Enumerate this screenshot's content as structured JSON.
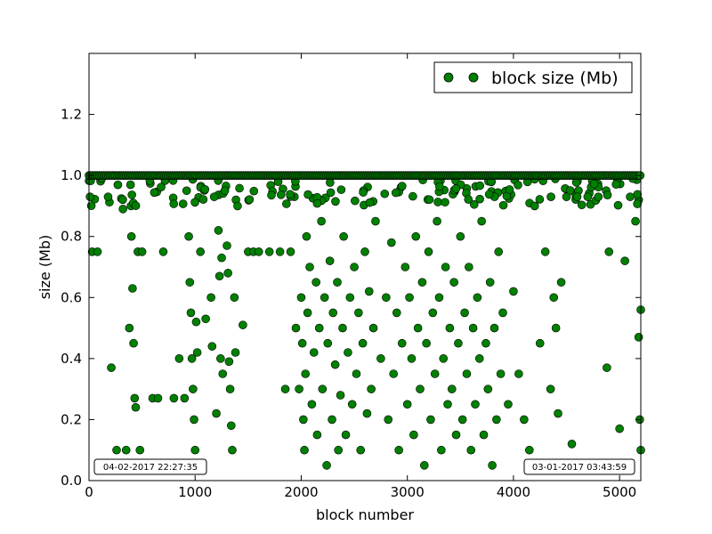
{
  "chart_data": {
    "type": "scatter",
    "xlabel": "block number",
    "ylabel": "size (Mb)",
    "xlim": [
      0,
      5200
    ],
    "ylim": [
      0,
      1.4
    ],
    "xticks": [
      "0",
      "1000",
      "2000",
      "3000",
      "4000",
      "5000"
    ],
    "yticks": [
      "0.0",
      "0.2",
      "0.4",
      "0.6",
      "0.8",
      "1.0",
      "1.2"
    ],
    "grid": false,
    "legend_position": "top-right",
    "series": [
      {
        "name": "block size (Mb)",
        "color": "#008000",
        "edge_color": "#000000",
        "marker": "circle",
        "points": [
          [
            10,
            0.93
          ],
          [
            30,
            0.75
          ],
          [
            80,
            0.75
          ],
          [
            120,
            0.99
          ],
          [
            180,
            0.93
          ],
          [
            210,
            0.37
          ],
          [
            260,
            0.1
          ],
          [
            320,
            0.89
          ],
          [
            350,
            0.1
          ],
          [
            380,
            0.5
          ],
          [
            400,
            0.8
          ],
          [
            410,
            0.63
          ],
          [
            420,
            0.45
          ],
          [
            430,
            0.27
          ],
          [
            440,
            0.24
          ],
          [
            460,
            0.75
          ],
          [
            480,
            0.1
          ],
          [
            500,
            0.75
          ],
          [
            600,
            0.27
          ],
          [
            650,
            0.27
          ],
          [
            700,
            0.75
          ],
          [
            800,
            0.27
          ],
          [
            850,
            0.4
          ],
          [
            900,
            0.27
          ],
          [
            920,
            0.95
          ],
          [
            940,
            0.8
          ],
          [
            950,
            0.65
          ],
          [
            960,
            0.55
          ],
          [
            970,
            0.4
          ],
          [
            980,
            0.3
          ],
          [
            990,
            0.2
          ],
          [
            1000,
            0.1
          ],
          [
            1010,
            0.52
          ],
          [
            1020,
            0.42
          ],
          [
            1050,
            0.75
          ],
          [
            1100,
            0.53
          ],
          [
            1150,
            0.6
          ],
          [
            1160,
            0.44
          ],
          [
            1180,
            0.93
          ],
          [
            1200,
            0.22
          ],
          [
            1220,
            0.82
          ],
          [
            1230,
            0.67
          ],
          [
            1240,
            0.4
          ],
          [
            1250,
            0.73
          ],
          [
            1260,
            0.35
          ],
          [
            1280,
            0.95
          ],
          [
            1300,
            0.77
          ],
          [
            1310,
            0.68
          ],
          [
            1320,
            0.39
          ],
          [
            1330,
            0.3
          ],
          [
            1340,
            0.18
          ],
          [
            1350,
            0.1
          ],
          [
            1370,
            0.6
          ],
          [
            1380,
            0.42
          ],
          [
            1400,
            0.9
          ],
          [
            1450,
            0.51
          ],
          [
            1500,
            0.75
          ],
          [
            1550,
            0.75
          ],
          [
            1600,
            0.75
          ],
          [
            1700,
            0.75
          ],
          [
            1800,
            0.75
          ],
          [
            1850,
            0.3
          ],
          [
            1900,
            0.75
          ],
          [
            1950,
            0.5
          ],
          [
            1980,
            0.3
          ],
          [
            2000,
            0.6
          ],
          [
            2010,
            0.45
          ],
          [
            2020,
            0.2
          ],
          [
            2030,
            0.1
          ],
          [
            2040,
            0.35
          ],
          [
            2050,
            0.8
          ],
          [
            2060,
            0.55
          ],
          [
            2080,
            0.7
          ],
          [
            2100,
            0.25
          ],
          [
            2120,
            0.42
          ],
          [
            2140,
            0.65
          ],
          [
            2150,
            0.15
          ],
          [
            2170,
            0.5
          ],
          [
            2190,
            0.85
          ],
          [
            2200,
            0.3
          ],
          [
            2220,
            0.6
          ],
          [
            2240,
            0.05
          ],
          [
            2250,
            0.45
          ],
          [
            2270,
            0.72
          ],
          [
            2290,
            0.2
          ],
          [
            2300,
            0.55
          ],
          [
            2320,
            0.38
          ],
          [
            2340,
            0.65
          ],
          [
            2350,
            0.1
          ],
          [
            2370,
            0.28
          ],
          [
            2390,
            0.5
          ],
          [
            2400,
            0.8
          ],
          [
            2420,
            0.15
          ],
          [
            2440,
            0.42
          ],
          [
            2460,
            0.6
          ],
          [
            2480,
            0.25
          ],
          [
            2500,
            0.7
          ],
          [
            2520,
            0.35
          ],
          [
            2540,
            0.55
          ],
          [
            2560,
            0.1
          ],
          [
            2580,
            0.45
          ],
          [
            2600,
            0.75
          ],
          [
            2620,
            0.22
          ],
          [
            2640,
            0.62
          ],
          [
            2660,
            0.3
          ],
          [
            2680,
            0.5
          ],
          [
            2700,
            0.85
          ],
          [
            2750,
            0.4
          ],
          [
            2800,
            0.6
          ],
          [
            2820,
            0.2
          ],
          [
            2850,
            0.78
          ],
          [
            2870,
            0.35
          ],
          [
            2900,
            0.55
          ],
          [
            2920,
            0.1
          ],
          [
            2950,
            0.45
          ],
          [
            2980,
            0.7
          ],
          [
            3000,
            0.25
          ],
          [
            3020,
            0.6
          ],
          [
            3040,
            0.4
          ],
          [
            3060,
            0.15
          ],
          [
            3080,
            0.8
          ],
          [
            3100,
            0.5
          ],
          [
            3120,
            0.3
          ],
          [
            3140,
            0.65
          ],
          [
            3160,
            0.05
          ],
          [
            3180,
            0.45
          ],
          [
            3200,
            0.75
          ],
          [
            3220,
            0.2
          ],
          [
            3240,
            0.55
          ],
          [
            3260,
            0.35
          ],
          [
            3280,
            0.85
          ],
          [
            3300,
            0.6
          ],
          [
            3320,
            0.1
          ],
          [
            3340,
            0.4
          ],
          [
            3360,
            0.7
          ],
          [
            3380,
            0.25
          ],
          [
            3400,
            0.5
          ],
          [
            3420,
            0.3
          ],
          [
            3440,
            0.65
          ],
          [
            3460,
            0.15
          ],
          [
            3480,
            0.45
          ],
          [
            3500,
            0.8
          ],
          [
            3520,
            0.2
          ],
          [
            3540,
            0.55
          ],
          [
            3560,
            0.35
          ],
          [
            3580,
            0.7
          ],
          [
            3600,
            0.1
          ],
          [
            3620,
            0.5
          ],
          [
            3640,
            0.25
          ],
          [
            3660,
            0.6
          ],
          [
            3680,
            0.4
          ],
          [
            3700,
            0.85
          ],
          [
            3720,
            0.15
          ],
          [
            3740,
            0.45
          ],
          [
            3760,
            0.3
          ],
          [
            3780,
            0.65
          ],
          [
            3800,
            0.05
          ],
          [
            3820,
            0.5
          ],
          [
            3840,
            0.2
          ],
          [
            3860,
            0.75
          ],
          [
            3880,
            0.35
          ],
          [
            3900,
            0.55
          ],
          [
            3950,
            0.25
          ],
          [
            4000,
            0.62
          ],
          [
            4050,
            0.35
          ],
          [
            4100,
            0.2
          ],
          [
            4150,
            0.1
          ],
          [
            4200,
            0.9
          ],
          [
            4250,
            0.45
          ],
          [
            4300,
            0.75
          ],
          [
            4350,
            0.3
          ],
          [
            4380,
            0.6
          ],
          [
            4400,
            0.5
          ],
          [
            4420,
            0.22
          ],
          [
            4450,
            0.65
          ],
          [
            4500,
            0.93
          ],
          [
            4550,
            0.12
          ],
          [
            4600,
            0.93
          ],
          [
            4700,
            0.93
          ],
          [
            4800,
            0.93
          ],
          [
            4880,
            0.37
          ],
          [
            4900,
            0.75
          ],
          [
            5000,
            0.17
          ],
          [
            5050,
            0.72
          ],
          [
            5100,
            0.93
          ],
          [
            5150,
            0.85
          ],
          [
            5180,
            0.47
          ],
          [
            5190,
            0.2
          ],
          [
            5200,
            0.1
          ],
          [
            5200,
            0.56
          ]
        ],
        "cap_band": {
          "x_range": [
            0,
            5200
          ],
          "y": 1.0
        },
        "near_cap_y_range": [
          0.9,
          0.99
        ]
      }
    ]
  },
  "annotations": {
    "left_timestamp": "04-02-2017 22:27:35",
    "right_timestamp": "03-01-2017 03:43:59"
  }
}
